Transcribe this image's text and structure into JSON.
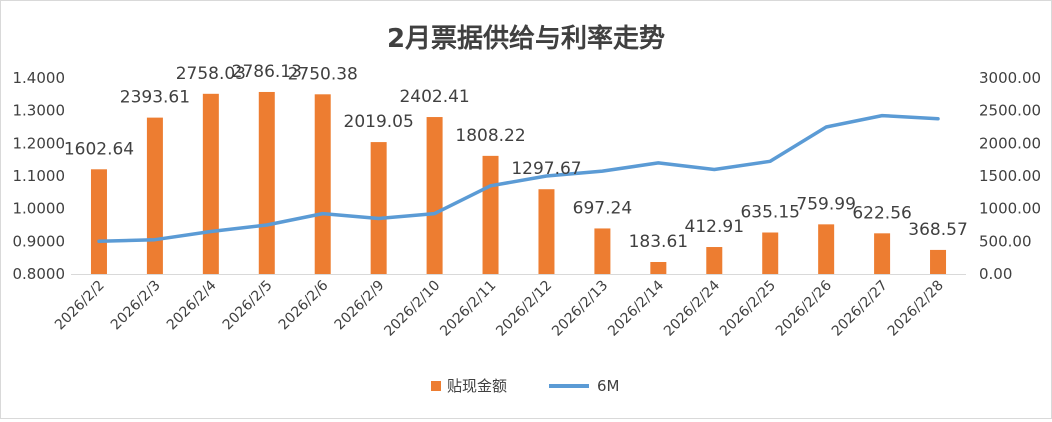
{
  "chart_data": {
    "type": "bar+line",
    "title": "2月票据供给与利率走势",
    "categories": [
      "2026/2/2",
      "2026/2/3",
      "2026/2/4",
      "2026/2/5",
      "2026/2/6",
      "2026/2/9",
      "2026/2/10",
      "2026/2/11",
      "2026/2/12",
      "2026/2/13",
      "2026/2/14",
      "2026/2/24",
      "2026/2/25",
      "2026/2/26",
      "2026/2/27",
      "2026/2/28"
    ],
    "series": [
      {
        "name": "贴现金额",
        "type": "bar",
        "axis": "right",
        "color": "#ED7D31",
        "values": [
          1602.64,
          2393.61,
          2758.03,
          2786.13,
          2750.38,
          2019.05,
          2402.41,
          1808.22,
          1297.67,
          697.24,
          183.61,
          412.91,
          635.15,
          759.99,
          622.56,
          368.57
        ],
        "labels": [
          "1602.64",
          "2393.61",
          "2758.03",
          "2786.13",
          "2750.38",
          "2019.05",
          "2402.41",
          "1808.22",
          "1297.67",
          "697.24",
          "183.61",
          "412.91",
          "635.15",
          "759.99",
          "622.56",
          "368.57"
        ]
      },
      {
        "name": "6M",
        "type": "line",
        "axis": "left",
        "color": "#5B9BD5",
        "values": [
          0.9,
          0.905,
          0.93,
          0.95,
          0.985,
          0.97,
          0.985,
          1.07,
          1.1,
          1.115,
          1.14,
          1.12,
          1.145,
          1.25,
          1.285,
          1.275
        ]
      }
    ],
    "y_left": {
      "min": 0.8,
      "max": 1.4,
      "step": 0.1,
      "ticks": [
        "0.8000",
        "0.9000",
        "1.0000",
        "1.1000",
        "1.2000",
        "1.3000",
        "1.4000"
      ]
    },
    "y_right": {
      "min": 0,
      "max": 3000,
      "step": 500,
      "ticks": [
        "0.00",
        "500.00",
        "1000.00",
        "1500.00",
        "2000.00",
        "2500.00",
        "3000.00"
      ]
    },
    "grid": false,
    "legend": "bottom"
  }
}
